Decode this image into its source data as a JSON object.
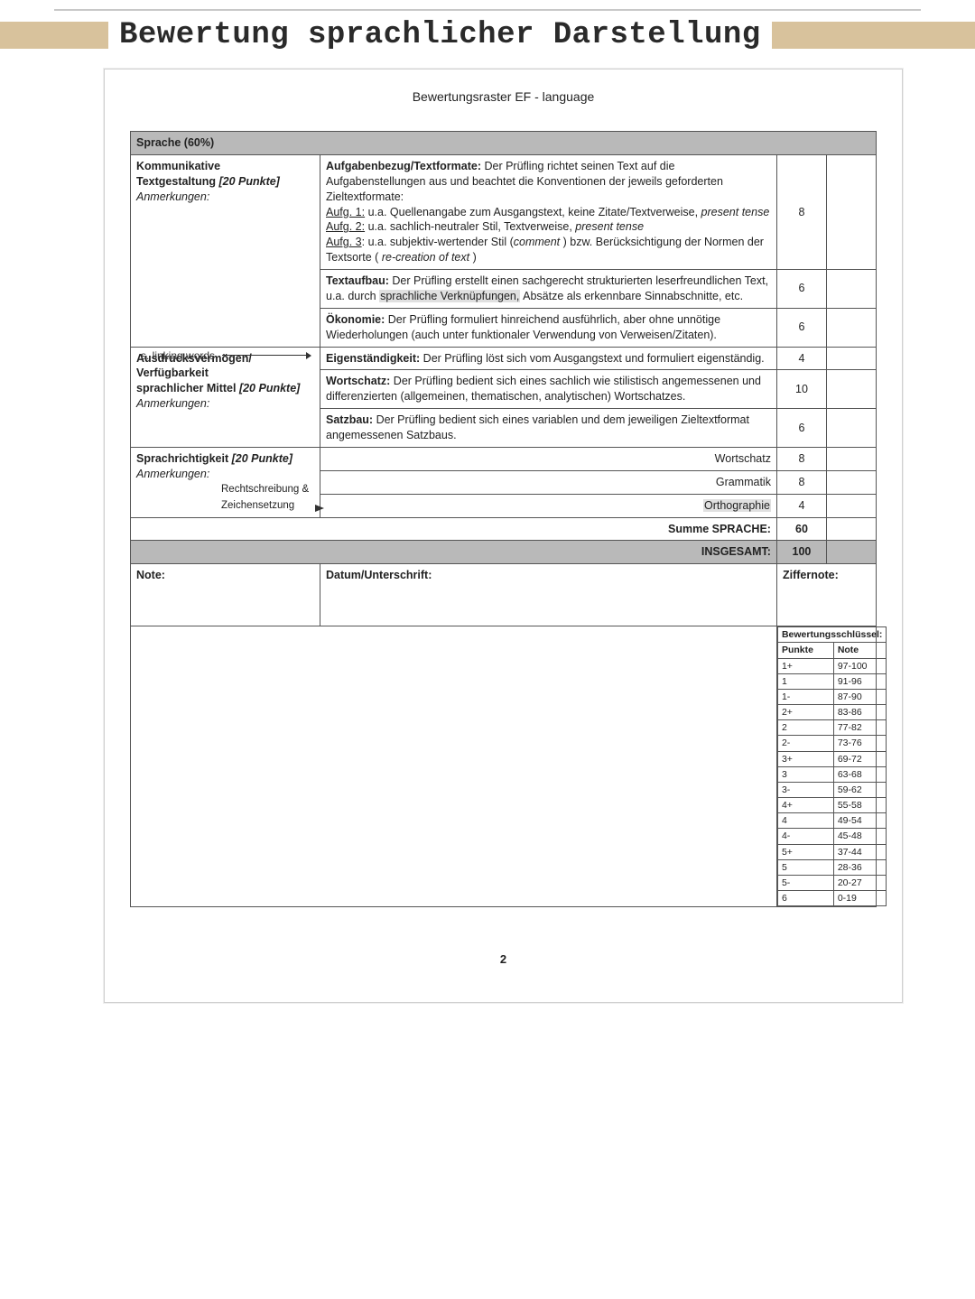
{
  "title": "Bewertung sprachlicher Darstellung",
  "subtitle": "Bewertungsraster EF - language",
  "headerRow": "Sprache (60%)",
  "section1": {
    "label_bold": "Kommunikative",
    "label_bold2": "Textgestaltung",
    "label_ital": "[20 Punkte]",
    "anmerkungen": "Anmerkungen:",
    "row1_title": "Aufgabenbezug/Textformate:",
    "row1_body_a": " Der Prüfling richtet seinen Text auf die Aufgabenstellungen aus und beachtet die Konventionen der jeweils geforderten Zieltextformate:",
    "row1_a1u": "Aufg. 1:",
    "row1_a1": " u.a. Quellenangabe zum Ausgangstext, keine Zitate/Textverweise, ",
    "row1_a1_it": "present tense",
    "row1_a2u": "Aufg. 2:",
    "row1_a2": " u.a. sachlich-neutraler Stil, Textverweise, ",
    "row1_a2_it": "present tense",
    "row1_a3u": "Aufg. 3",
    "row1_a3": ": u.a. subjektiv-wertender Stil (",
    "row1_a3_it": "comment",
    "row1_a3b": " ) bzw. Berücksichtigung der Normen der Textsorte ( ",
    "row1_a3_it2": "re-creation of text",
    "row1_a3c": " )",
    "row1_pts": "8",
    "row2_title": "Textaufbau:",
    "row2_body_a": " Der Prüfling erstellt einen sachgerecht strukturierten leserfreundlichen Text, u.a. durch ",
    "row2_hl": "sprachliche Verknüpfungen,",
    "row2_body_b": " Absätze als erkennbare Sinnabschnitte, etc.",
    "row2_pts": "6",
    "row3_title": "Ökonomie:",
    "row3_body": " Der Prüfling formuliert hinreichend ausführlich, aber ohne unnötige Wiederholungen (auch unter funktionaler Verwendung von Verweisen/Zitaten).",
    "row3_pts": "6"
  },
  "section2": {
    "label_bold1": "Ausdrucksvermögen/",
    "label_bold2": "Verfügbarkeit",
    "label_bold3": "sprachlicher Mittel",
    "label_ital": "[20 Punkte]",
    "anmerkungen": "Anmerkungen:",
    "row1_title": "Eigenständigkeit:",
    "row1_body": " Der Prüfling löst sich vom Ausgangstext und formuliert eigenständig.",
    "row1_pts": "4",
    "row2_title": "Wortschatz:",
    "row2_body": " Der Prüfling bedient sich eines sachlich wie stilistisch angemessenen und differenzierten (allgemeinen, thematischen, analytischen) Wortschatzes.",
    "row2_pts": "10",
    "row3_title": "Satzbau:",
    "row3_body": " Der Prüfling bedient sich eines variablen und dem jeweiligen Zieltextformat angemessenen Satzbaus.",
    "row3_pts": "6"
  },
  "section3": {
    "label_bold": "Sprachrichtigkeit",
    "label_ital": "[20 Punkte]",
    "anmerkungen": "Anmerkungen:",
    "r1_label": "Wortschatz",
    "r1_pts": "8",
    "r2_label": "Grammatik",
    "r2_pts": "8",
    "r3_label": "Orthographie",
    "r3_pts": "4"
  },
  "sumLabel": "Summe SPRACHE:",
  "sumPts": "60",
  "insLabel": "INSGESAMT:",
  "insPts": "100",
  "footer": {
    "note": "Note:",
    "datum": "Datum/Unterschrift:",
    "ziffer": "Ziffernote:"
  },
  "schluessel": {
    "title": "Bewertungsschlüssel:",
    "h1": "Punkte",
    "h2": "Note",
    "rows": [
      [
        "1+",
        "97-100"
      ],
      [
        "1",
        "91-96"
      ],
      [
        "1-",
        "87-90"
      ],
      [
        "2+",
        "83-86"
      ],
      [
        "2",
        "77-82"
      ],
      [
        "2-",
        "73-76"
      ],
      [
        "3+",
        "69-72"
      ],
      [
        "3",
        "63-68"
      ],
      [
        "3-",
        "59-62"
      ],
      [
        "4+",
        "55-58"
      ],
      [
        "4",
        "49-54"
      ],
      [
        "4-",
        "45-48"
      ],
      [
        "5+",
        "37-44"
      ],
      [
        "5",
        "28-36"
      ],
      [
        "5-",
        "20-27"
      ],
      [
        "6",
        "0-19"
      ]
    ]
  },
  "annot1": "s. linking words",
  "annot2": "Rechtschreibung & Zeichensetzung",
  "pageNum": "2"
}
